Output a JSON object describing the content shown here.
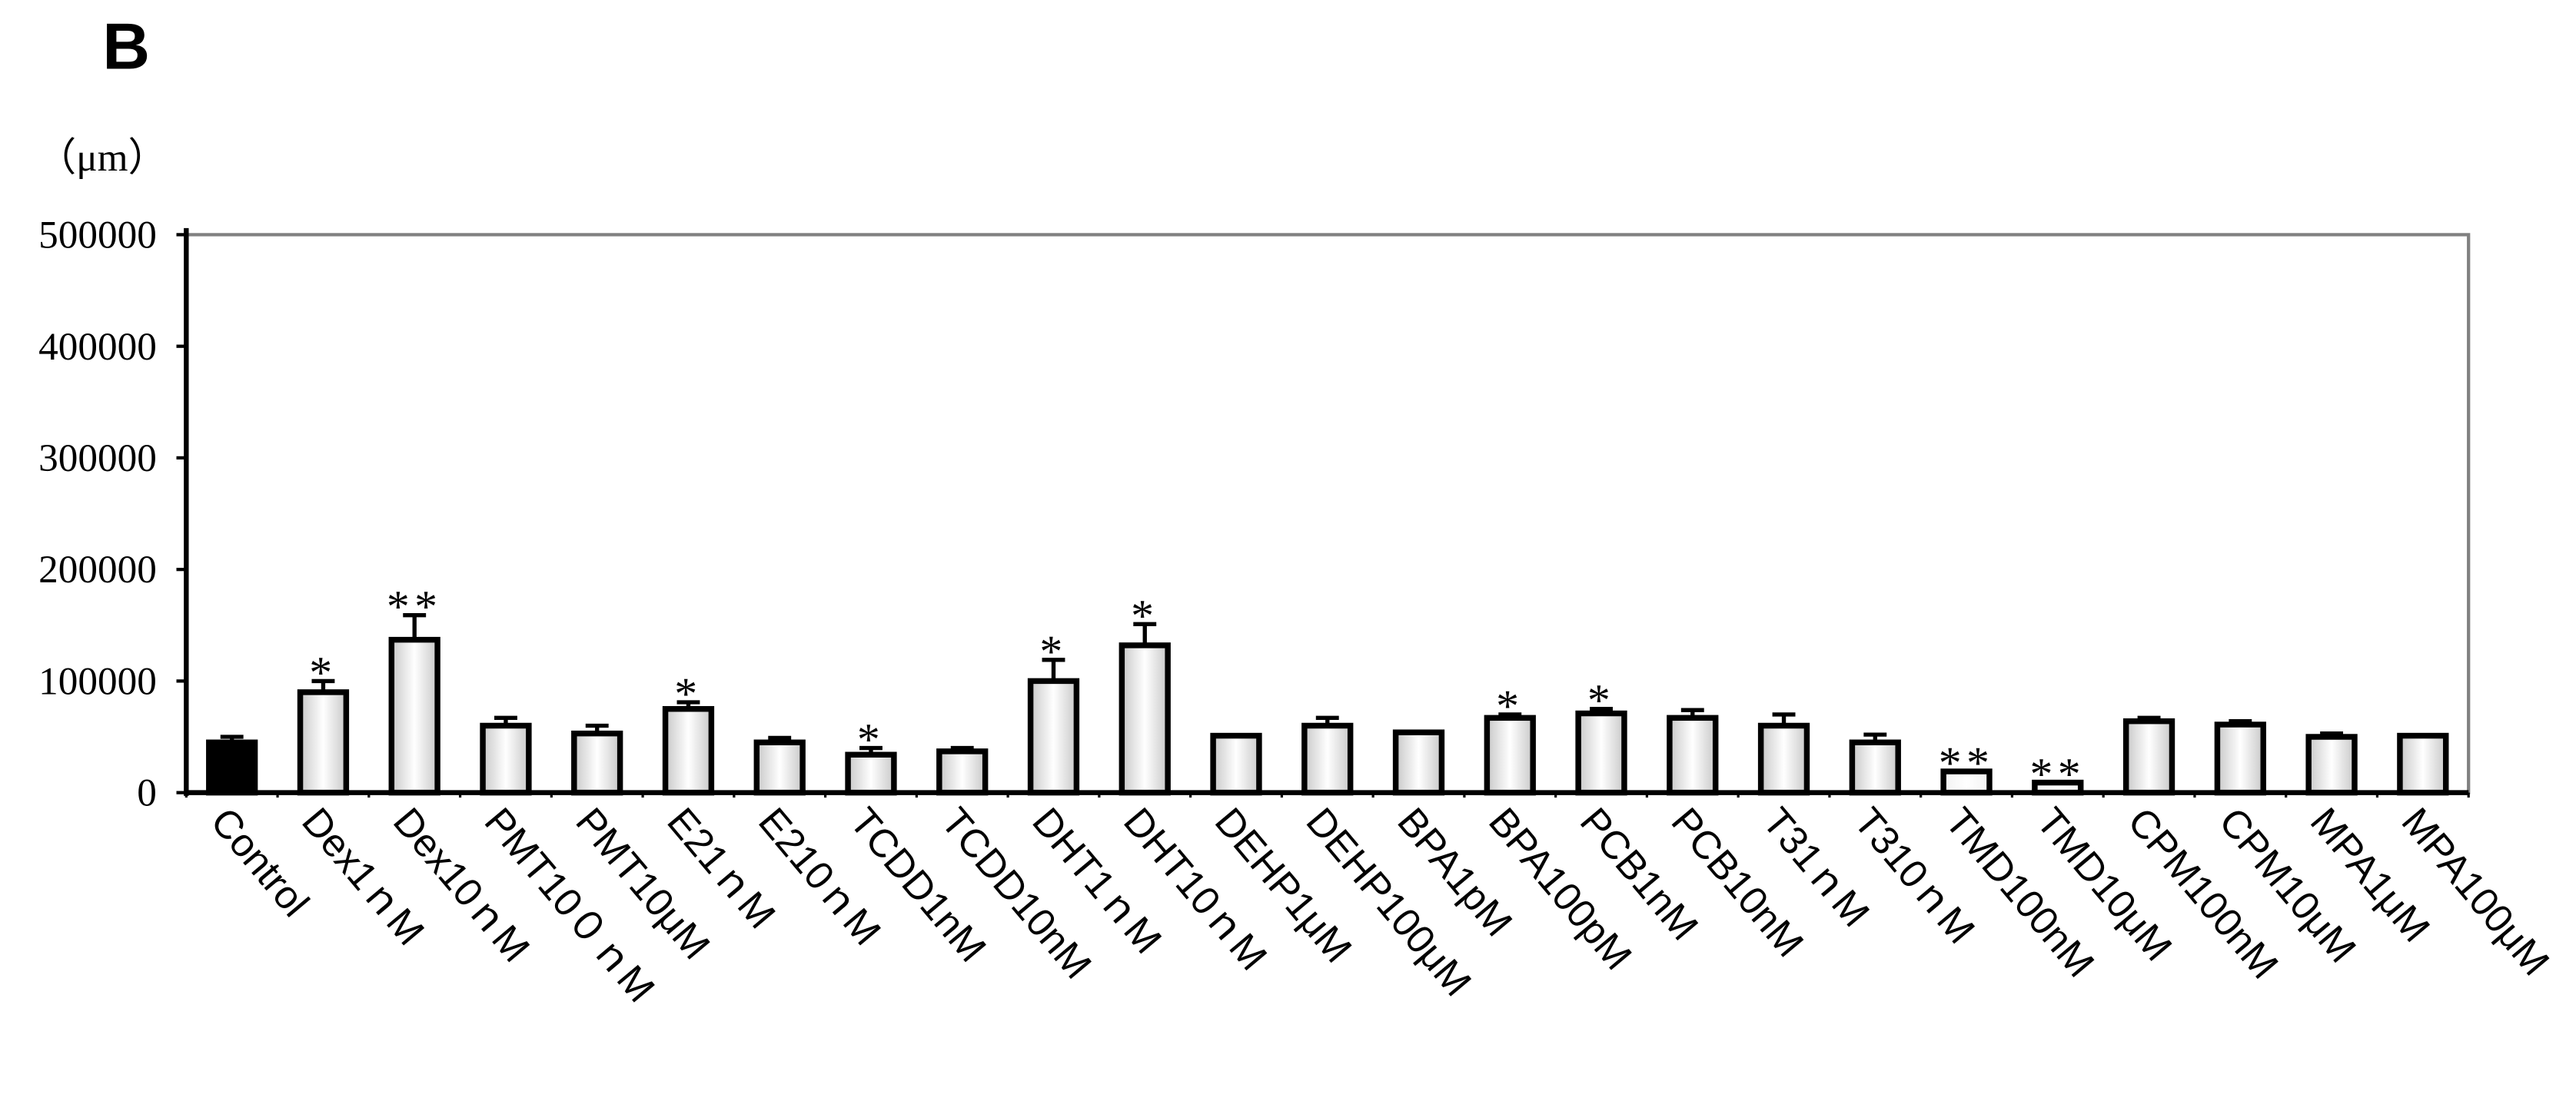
{
  "chart_data": {
    "type": "bar",
    "title": "B",
    "y_label": "（μm）",
    "categories": [
      "Control",
      "Dex1ｎM",
      "Dex10ｎM",
      "PMT10０ｎM",
      "PMT10μM",
      "E21ｎM",
      "E210ｎM",
      "TCDD1nM",
      "TCDD10nM",
      "DHT1ｎM",
      "DHT10ｎM",
      "DEHP1μM",
      "DEHP100μM",
      "BPA1pM",
      "BPA100pM",
      "PCB1nM",
      "PCB10nM",
      "T31ｎM",
      "T310ｎM",
      "TMD100nM",
      "TMD10μM",
      "CPM100nM",
      "CPM10μM",
      "MPA1μM",
      "MPA100μM"
    ],
    "values": [
      45000,
      90000,
      137000,
      60000,
      53000,
      75000,
      45000,
      34000,
      37000,
      100000,
      132000,
      51000,
      60000,
      54000,
      67000,
      71000,
      67000,
      60000,
      45000,
      19000,
      9000,
      64000,
      61000,
      50000,
      51000
    ],
    "errors": [
      5000,
      10000,
      22000,
      7000,
      7000,
      6000,
      4000,
      6000,
      3000,
      19000,
      19000,
      null,
      7000,
      null,
      3000,
      4000,
      7000,
      10000,
      7000,
      null,
      null,
      3000,
      3000,
      3000,
      null
    ],
    "annotations": [
      null,
      "*",
      "**",
      null,
      null,
      "*",
      null,
      "*",
      null,
      "*",
      "*",
      null,
      null,
      null,
      "*",
      "*",
      null,
      null,
      null,
      "**",
      "**",
      null,
      null,
      null,
      null
    ],
    "colors": [
      "#000000",
      "#c8c8c8",
      "#c8c8c8",
      "#c8c8c8",
      "#c8c8c8",
      "#c8c8c8",
      "#c8c8c8",
      "#c8c8c8",
      "#c8c8c8",
      "#c8c8c8",
      "#c8c8c8",
      "#c8c8c8",
      "#c8c8c8",
      "#c8c8c8",
      "#c8c8c8",
      "#c8c8c8",
      "#c8c8c8",
      "#c8c8c8",
      "#c8c8c8",
      "#f2f2f2",
      "#f2f2f2",
      "#c8c8c8",
      "#c8c8c8",
      "#c8c8c8",
      "#c8c8c8"
    ],
    "ylim": [
      0,
      500000
    ],
    "yticks": [
      0,
      100000,
      200000,
      300000,
      400000,
      500000
    ],
    "grid": false
  }
}
